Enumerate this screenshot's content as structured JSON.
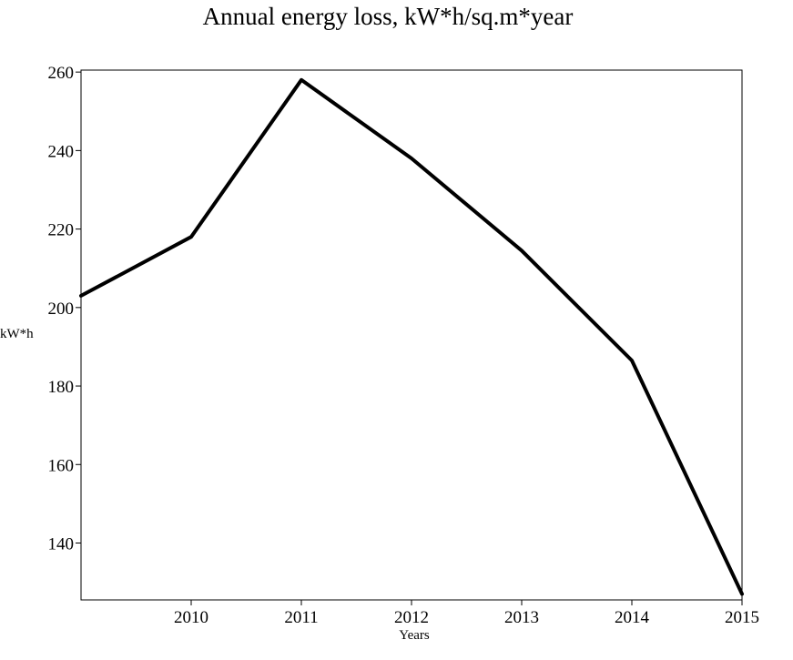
{
  "chart_data": {
    "type": "line",
    "title": "Annual energy loss, kW*h/sq.m*year",
    "xlabel": "Years",
    "ylabel": "kW*h",
    "x": [
      2009,
      2010,
      2011,
      2012,
      2013,
      2014,
      2015
    ],
    "x_tick_labels": [
      "2010",
      "2011",
      "2012",
      "2013",
      "2014",
      "2015"
    ],
    "y_ticks": [
      140,
      160,
      180,
      200,
      220,
      240,
      260
    ],
    "y_tick_labels": [
      "140",
      "160",
      "180",
      "200",
      "220",
      "240",
      "260"
    ],
    "xlim": [
      2009,
      2015
    ],
    "ylim": [
      125.5,
      260.5
    ],
    "grid": false,
    "series": [
      {
        "values": [
          203,
          218,
          258,
          238,
          214.5,
          186.5,
          127
        ],
        "color": "#000000"
      }
    ]
  }
}
